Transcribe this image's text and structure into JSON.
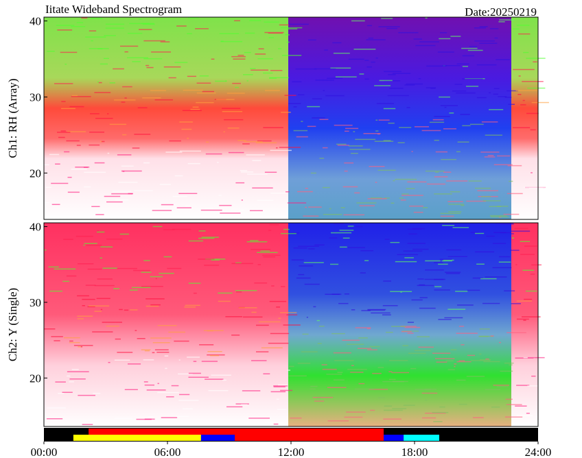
{
  "chart_data": {
    "type": "spectrogram",
    "title": "Iitate Wideband Spectrogram",
    "annotation": "Date:20250219",
    "xlim": [
      0,
      24
    ],
    "xticks": [
      {
        "value": 0,
        "label": "00:00"
      },
      {
        "value": 6,
        "label": "06:00"
      },
      {
        "value": 12,
        "label": "12:00"
      },
      {
        "value": 18,
        "label": "18:00"
      },
      {
        "value": 24,
        "label": "24:00"
      }
    ],
    "panels": [
      {
        "ylabel": "Ch1: RH (Array)",
        "ylim": [
          13.9,
          40.5
        ],
        "yticks": [
          20,
          30,
          40
        ]
      },
      {
        "ylabel": "Ch2: Y (Single)",
        "ylim": [
          13.6,
          40.5
        ],
        "yticks": [
          20,
          30,
          40
        ]
      }
    ],
    "status_bars": [
      {
        "segments": [
          {
            "start": 2.17,
            "end": 16.5,
            "color": "#ff0000"
          }
        ]
      },
      {
        "segments": [
          {
            "start": 1.43,
            "end": 7.63,
            "color": "#ffff00"
          },
          {
            "start": 7.63,
            "end": 9.27,
            "color": "#0000ff"
          },
          {
            "start": 9.27,
            "end": 16.5,
            "color": "#ff0000"
          },
          {
            "start": 16.5,
            "end": 17.47,
            "color": "#0000ff"
          },
          {
            "start": 17.47,
            "end": 19.2,
            "color": "#00ffff"
          }
        ]
      }
    ]
  }
}
